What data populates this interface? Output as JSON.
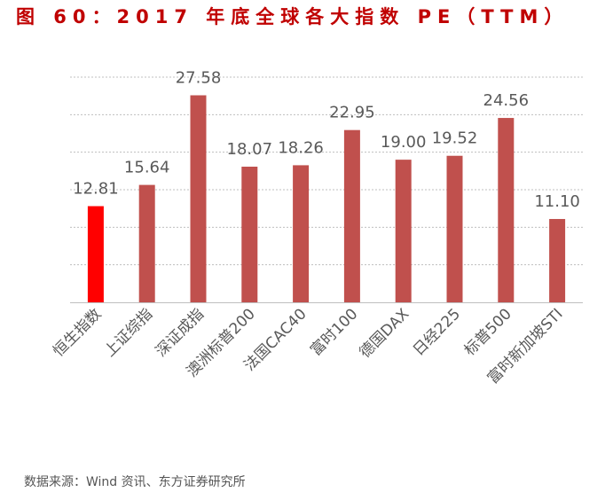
{
  "figure_title": "图 60：2017 年底全球各大指数 PE（TTM）",
  "source_note": "数据来源：Wind 资讯、东方证券研究所",
  "colors": {
    "highlight": "#ff0000",
    "bar": "#c0504d",
    "grid": "#bfbfbf",
    "axis": "#bfbfbf",
    "label": "#595959",
    "title": "#c00000"
  },
  "chart_data": {
    "type": "bar",
    "title": "",
    "xlabel": "",
    "ylabel": "",
    "categories": [
      "恒生指数",
      "上证综指",
      "深证成指",
      "澳洲标普200",
      "法国CAC40",
      "富时100",
      "德国DAX",
      "日经225",
      "标普500",
      "富时新加坡STI"
    ],
    "values": [
      12.81,
      15.64,
      27.58,
      18.07,
      18.26,
      22.95,
      19.0,
      19.52,
      24.56,
      11.1
    ],
    "value_labels": [
      "12.81",
      "15.64",
      "27.58",
      "18.07",
      "18.26",
      "22.95",
      "19.00",
      "19.52",
      "24.56",
      "11.10"
    ],
    "highlight_index": 0,
    "ylim": [
      0,
      30
    ],
    "gridlines": [
      5,
      10,
      15,
      20,
      25,
      30
    ],
    "grid": true,
    "legend": "none"
  }
}
